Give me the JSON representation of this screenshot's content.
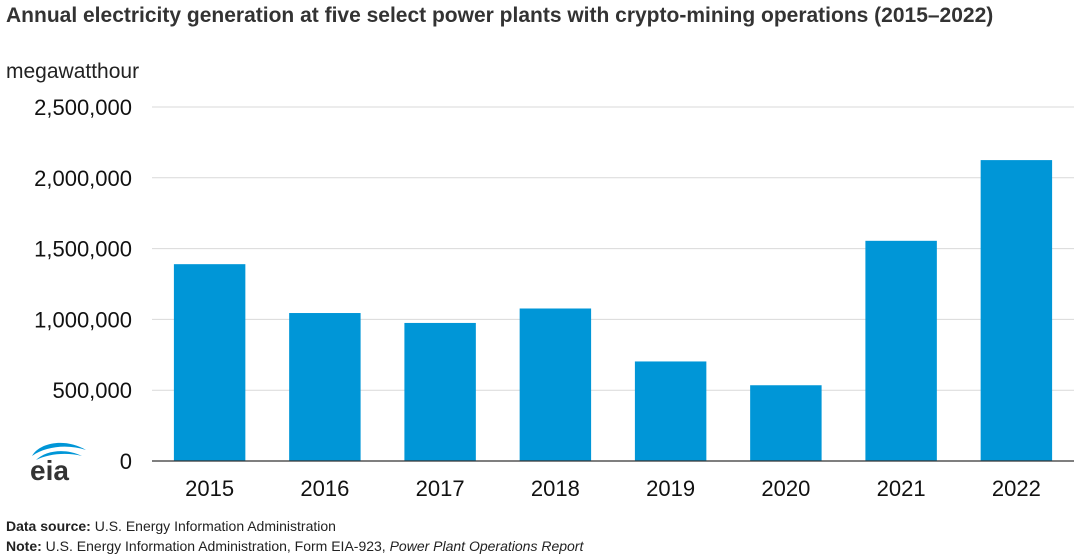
{
  "chart_data": {
    "type": "bar",
    "title": "Annual electricity generation at five select power plants with crypto-mining operations (2015–2022)",
    "ylabel": "megawatthour",
    "xlabel": "",
    "categories": [
      "2015",
      "2016",
      "2017",
      "2018",
      "2019",
      "2020",
      "2021",
      "2022"
    ],
    "values": [
      1390000,
      1045000,
      975000,
      1077000,
      703000,
      535000,
      1555000,
      2125000
    ],
    "ylim": [
      0,
      2500000
    ],
    "yticks": [
      0,
      500000,
      1000000,
      1500000,
      2000000,
      2500000
    ],
    "ytick_labels": [
      "0",
      "500,000",
      "1,000,000",
      "1,500,000",
      "2,000,000",
      "2,500,000"
    ],
    "grid": true,
    "bar_color": "#0096d7"
  },
  "footer": {
    "source_label": "Data source:",
    "source_text": "U.S. Energy Information Administration",
    "note_label": "Note:",
    "note_text": "U.S. Energy Information Administration, Form EIA-923,",
    "note_italic": "Power Plant Operations Report"
  },
  "logo": {
    "text": "eia",
    "color": "#0096d7",
    "text_color": "#333333"
  }
}
